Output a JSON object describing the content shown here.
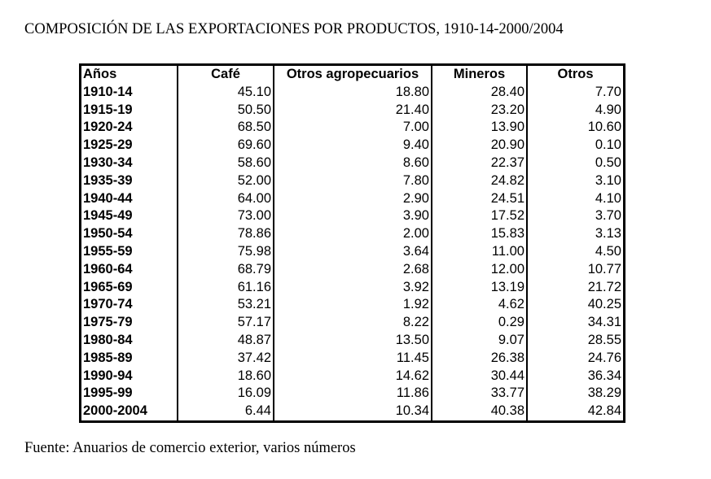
{
  "title": "COMPOSICIÓN DE LAS EXPORTACIONES POR PRODUCTOS, 1910-14-2000/2004",
  "table": {
    "headers": [
      "Años",
      "Café",
      "Otros agropecuarios",
      "Mineros",
      "Otros"
    ],
    "rows": [
      [
        "1910-14",
        "45.10",
        "18.80",
        "28.40",
        "7.70"
      ],
      [
        "1915-19",
        "50.50",
        "21.40",
        "23.20",
        "4.90"
      ],
      [
        "1920-24",
        "68.50",
        "7.00",
        "13.90",
        "10.60"
      ],
      [
        "1925-29",
        "69.60",
        "9.40",
        "20.90",
        "0.10"
      ],
      [
        "1930-34",
        "58.60",
        "8.60",
        "22.37",
        "0.50"
      ],
      [
        "1935-39",
        "52.00",
        "7.80",
        "24.82",
        "3.10"
      ],
      [
        "1940-44",
        "64.00",
        "2.90",
        "24.51",
        "4.10"
      ],
      [
        "1945-49",
        "73.00",
        "3.90",
        "17.52",
        "3.70"
      ],
      [
        "1950-54",
        "78.86",
        "2.00",
        "15.83",
        "3.13"
      ],
      [
        "1955-59",
        "75.98",
        "3.64",
        "11.00",
        "4.50"
      ],
      [
        "1960-64",
        "68.79",
        "2.68",
        "12.00",
        "10.77"
      ],
      [
        "1965-69",
        "61.16",
        "3.92",
        "13.19",
        "21.72"
      ],
      [
        "1970-74",
        "53.21",
        "1.92",
        "4.62",
        "40.25"
      ],
      [
        "1975-79",
        "57.17",
        "8.22",
        "0.29",
        "34.31"
      ],
      [
        "1980-84",
        "48.87",
        "13.50",
        "9.07",
        "28.55"
      ],
      [
        "1985-89",
        "37.42",
        "11.45",
        "26.38",
        "24.76"
      ],
      [
        "1990-94",
        "18.60",
        "14.62",
        "30.44",
        "36.34"
      ],
      [
        "1995-99",
        "16.09",
        "11.86",
        "33.77",
        "38.29"
      ],
      [
        "2000-2004",
        "6.44",
        "10.34",
        "40.38",
        "42.84"
      ]
    ]
  },
  "source": "Fuente: Anuarios de comercio exterior, varios números"
}
